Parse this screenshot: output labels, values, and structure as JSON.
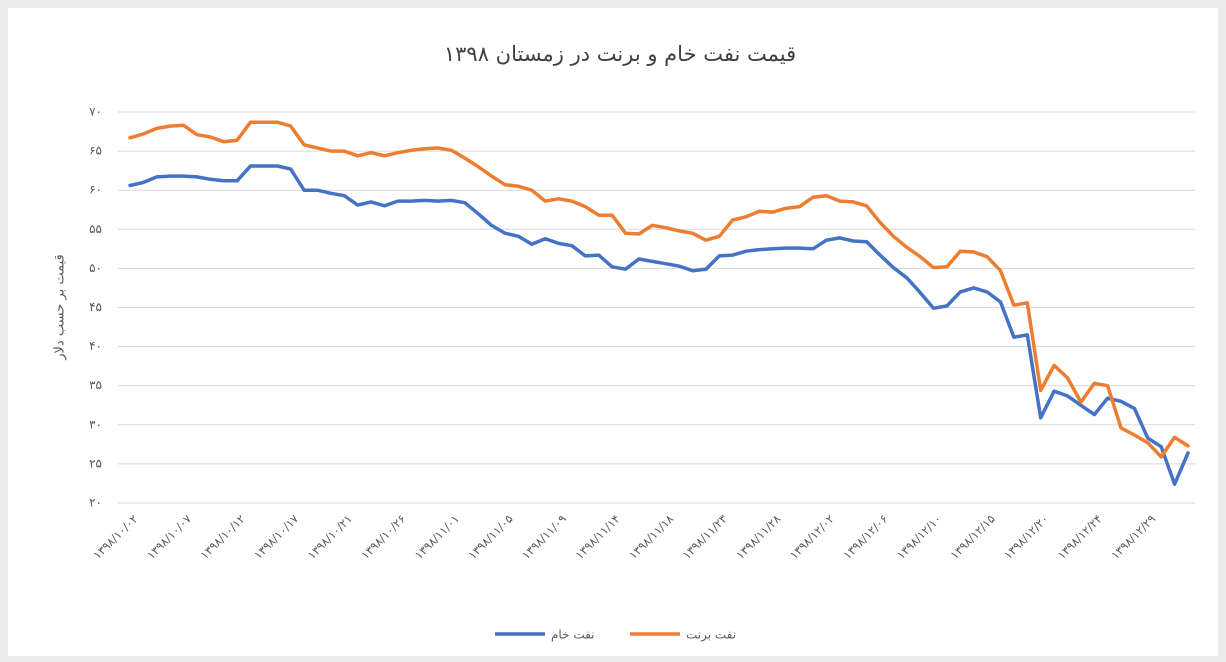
{
  "chart_data": {
    "type": "line",
    "title": "قیمت نفت خام و برنت در زمستان ۱۳۹۸",
    "y_label": "قیمت بر حسب دلار",
    "categories": [
      "۱۳۹۸/۱۰/۰۲",
      null,
      null,
      null,
      "۱۳۹۸/۱۰/۰۷",
      null,
      null,
      null,
      "۱۳۹۸/۱۰/۱۲",
      null,
      null,
      null,
      "۱۳۹۸/۱۰/۱۷",
      null,
      null,
      null,
      "۱۳۹۸/۱۰/۲۱",
      null,
      null,
      null,
      "۱۳۹۸/۱۰/۲۶",
      null,
      null,
      null,
      "۱۳۹۸/۱۱/۰۱",
      null,
      null,
      null,
      "۱۳۹۸/۱۱/۰۵",
      null,
      null,
      null,
      "۱۳۹۸/۱۱/۰۹",
      null,
      null,
      null,
      "۱۳۹۸/۱۱/۱۴",
      null,
      null,
      null,
      "۱۳۹۸/۱۱/۱۸",
      null,
      null,
      null,
      "۱۳۹۸/۱۱/۲۳",
      null,
      null,
      null,
      "۱۳۹۸/۱۱/۲۸",
      null,
      null,
      null,
      "۱۳۹۸/۱۲/۰۲",
      null,
      null,
      null,
      "۱۳۹۸/۱۲/۰۶",
      null,
      null,
      null,
      "۱۳۹۸/۱۲/۱۰",
      null,
      null,
      null,
      "۱۳۹۸/۱۲/۱۵",
      null,
      null,
      null,
      "۱۳۹۸/۱۲/۲۰",
      null,
      null,
      null,
      "۱۳۹۸/۱۲/۲۴",
      null,
      null,
      null,
      "۱۳۹۸/۱۲/۲۹",
      null,
      null,
      null
    ],
    "series": [
      {
        "name": "نفت خام",
        "color": "#4472c4",
        "values": [
          60.6,
          61,
          61.7,
          61.8,
          61.8,
          61.7,
          61.4,
          61.2,
          61.2,
          63.1,
          63.1,
          63.1,
          62.7,
          60,
          60,
          59.6,
          59.3,
          58.1,
          58.5,
          58,
          58.6,
          58.6,
          58.7,
          58.6,
          58.7,
          58.4,
          57,
          55.5,
          54.5,
          54.1,
          53.1,
          53.8,
          53.2,
          52.9,
          51.6,
          51.7,
          50.2,
          49.9,
          51.2,
          50.9,
          50.6,
          50.3,
          49.7,
          49.9,
          51.6,
          51.7,
          52.2,
          52.4,
          52.5,
          52.6,
          52.6,
          52.5,
          53.6,
          53.9,
          53.5,
          53.4,
          51.7,
          50.1,
          48.8,
          46.9,
          44.9,
          45.2,
          47,
          47.5,
          47,
          45.7,
          41.2,
          41.5,
          30.9,
          34.3,
          33.7,
          32.5,
          31.3,
          33.4,
          33,
          32.1,
          28.3,
          27.2,
          22.4,
          26.4
        ]
      },
      {
        "name": "نفت برنت",
        "color": "#ed7d31",
        "values": [
          66.7,
          67.2,
          67.9,
          68.2,
          68.3,
          67.1,
          66.8,
          66.2,
          66.4,
          68.7,
          68.7,
          68.7,
          68.2,
          65.8,
          65.4,
          65,
          65,
          64.4,
          64.8,
          64.4,
          64.8,
          65.1,
          65.3,
          65.4,
          65.1,
          64.1,
          63,
          61.8,
          60.7,
          60.5,
          60,
          58.6,
          58.9,
          58.6,
          57.9,
          56.8,
          56.8,
          54.5,
          54.4,
          55.5,
          55.2,
          54.8,
          54.5,
          53.6,
          54.1,
          56.2,
          56.6,
          57.3,
          57.2,
          57.7,
          57.9,
          59.1,
          59.3,
          58.6,
          58.5,
          58,
          55.9,
          54.1,
          52.7,
          51.5,
          50.1,
          50.2,
          52.2,
          52.1,
          51.5,
          49.7,
          45.3,
          45.6,
          34.4,
          37.6,
          36,
          32.9,
          35.3,
          35,
          29.6,
          28.7,
          27.7,
          25.9,
          28.4,
          27.3
        ]
      }
    ],
    "ylim": [
      20,
      70
    ],
    "yticks": [
      {
        "value": 20,
        "label": "۲۰"
      },
      {
        "value": 25,
        "label": "۲۵"
      },
      {
        "value": 30,
        "label": "۳۰"
      },
      {
        "value": 35,
        "label": "۳۵"
      },
      {
        "value": 40,
        "label": "۴۰"
      },
      {
        "value": 45,
        "label": "۴۵"
      },
      {
        "value": 50,
        "label": "۵۰"
      },
      {
        "value": 55,
        "label": "۵۵"
      },
      {
        "value": 60,
        "label": "۶۰"
      },
      {
        "value": 65,
        "label": "۶۵"
      },
      {
        "value": 70,
        "label": "۷۰"
      }
    ],
    "grid": true,
    "legend": "bottom"
  }
}
